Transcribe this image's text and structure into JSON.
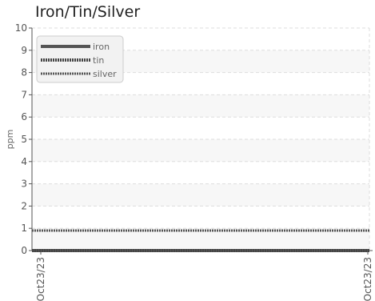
{
  "chart_data": {
    "type": "line",
    "title": "Iron/Tin/Silver",
    "ylabel": "ppm",
    "xlabel": "",
    "ylim": [
      0,
      10
    ],
    "y_ticks": [
      "0",
      "1",
      "2",
      "3",
      "4",
      "5",
      "6",
      "7",
      "8",
      "9",
      "10"
    ],
    "x_ticks": [
      "Oct23/23",
      "Oct23/23"
    ],
    "grid": true,
    "legend_position": "top-left",
    "series": [
      {
        "name": "iron",
        "values": [
          0,
          0
        ],
        "color": "#555555",
        "style": "solid"
      },
      {
        "name": "tin",
        "values": [
          0,
          0
        ],
        "color": "#444444",
        "style": "dotted-thick"
      },
      {
        "name": "silver",
        "values": [
          0.9,
          0.9
        ],
        "color": "#555555",
        "style": "dotted-thin"
      }
    ]
  }
}
